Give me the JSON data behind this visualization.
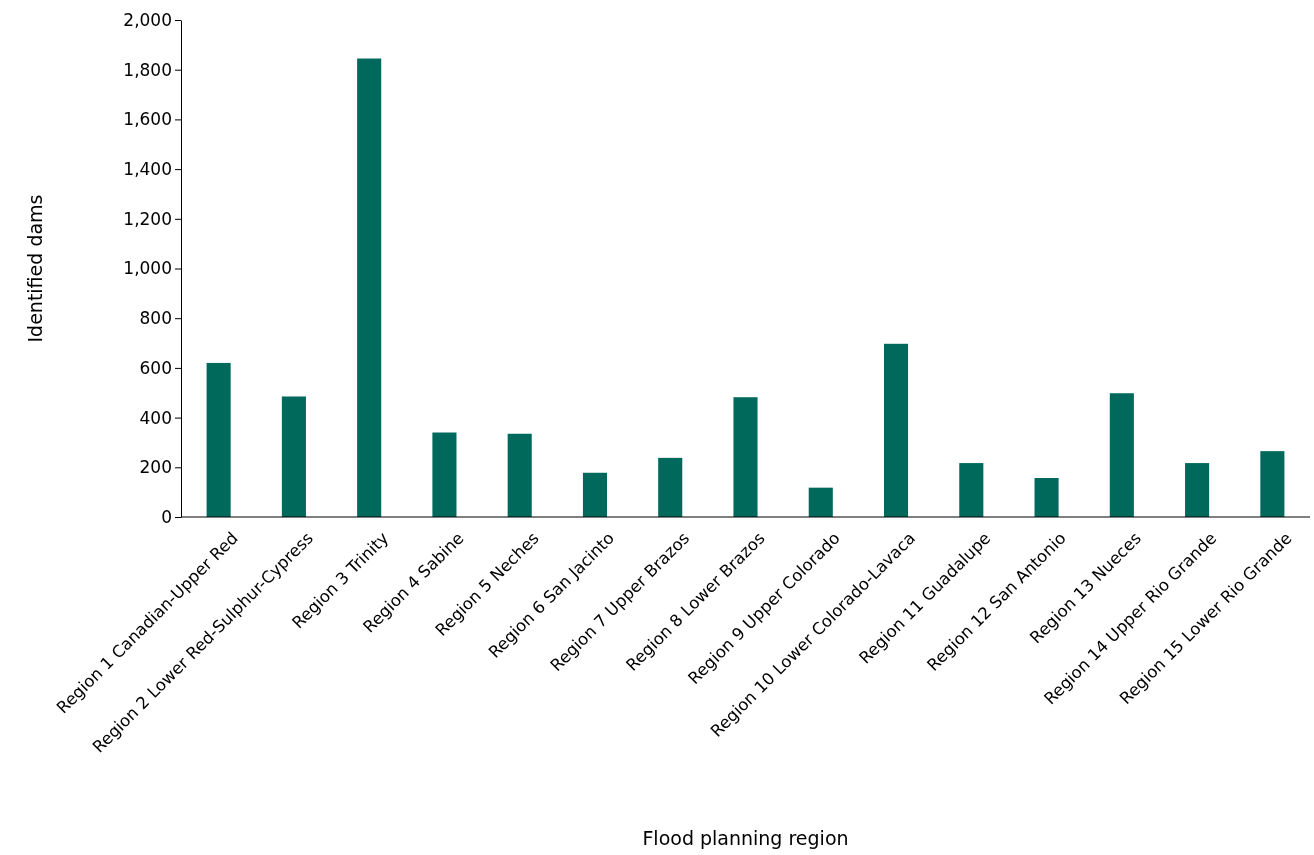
{
  "chart_data": {
    "type": "bar",
    "xlabel": "Flood planning region",
    "ylabel": "Identified dams",
    "categories": [
      "Region 1 Canadian-Upper Red",
      "Region 2 Lower Red-Sulphur-Cypress",
      "Region 3 Trinity",
      "Region 4 Sabine",
      "Region 5 Neches",
      "Region 6 San Jacinto",
      "Region 7 Upper Brazos",
      "Region 8 Lower Brazos",
      "Region 9 Upper Colorado",
      "Region 10 Lower Colorado-Lavaca",
      "Region 11 Guadalupe",
      "Region 12 San Antonio",
      "Region 13 Nueces",
      "Region 14 Upper Rio Grande",
      "Region 15 Lower Rio Grande"
    ],
    "values": [
      620,
      485,
      1845,
      340,
      335,
      178,
      238,
      482,
      118,
      697,
      217,
      157,
      498,
      217,
      265
    ],
    "color": "#00695c",
    "ylim": [
      0,
      2000
    ],
    "yticks": [
      0,
      {
        "value": 200,
        "label": "200"
      },
      {
        "value": 400,
        "label": "400"
      },
      {
        "value": 600,
        "label": "600"
      },
      {
        "value": 800,
        "label": "800"
      },
      {
        "value": 1000,
        "label": "1,000"
      },
      {
        "value": 1200,
        "label": "1,200"
      },
      {
        "value": 1400,
        "label": "1,400"
      },
      {
        "value": 1600,
        "label": "1,600"
      },
      {
        "value": 1800,
        "label": "1,800"
      },
      {
        "value": 2000,
        "label": "2,000"
      }
    ],
    "grid": false
  }
}
